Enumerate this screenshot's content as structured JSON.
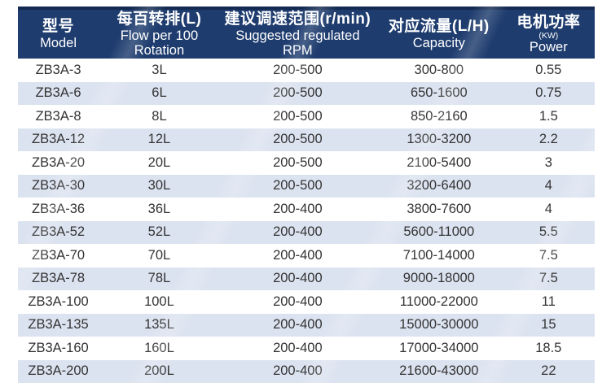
{
  "colors": {
    "header_bg": "#1e3c6e",
    "header_top": "#142a52",
    "header_text": "#ffffff",
    "stripe_bg": "#dce3f0",
    "row_bg": "#ffffff",
    "body_text": "#333333"
  },
  "table": {
    "header": [
      {
        "lines": [
          "型号",
          "Model"
        ]
      },
      {
        "lines": [
          "每百转排(L)",
          "Flow per 100",
          "Rotation"
        ]
      },
      {
        "lines": [
          "建议调速范围(r/min)",
          "Suggested regulated",
          "RPM"
        ]
      },
      {
        "lines": [
          "对应流量(L/H)",
          "Capacity"
        ]
      },
      {
        "lines": [
          "电机功率",
          "(KW)",
          "Power"
        ],
        "small_line": 1
      }
    ],
    "rows": [
      {
        "model": "ZB3A-3",
        "flow": "3L",
        "rpm": "200-500",
        "capacity": "300-800",
        "power": "0.55"
      },
      {
        "model": "ZB3A-6",
        "flow": "6L",
        "rpm": "200-500",
        "capacity": "650-1600",
        "power": "0.75"
      },
      {
        "model": "ZB3A-8",
        "flow": "8L",
        "rpm": "200-500",
        "capacity": "850-2160",
        "power": "1.5"
      },
      {
        "model": "ZB3A-12",
        "flow": "12L",
        "rpm": "200-500",
        "capacity": "1300-3200",
        "power": "2.2"
      },
      {
        "model": "ZB3A-20",
        "flow": "20L",
        "rpm": "200-500",
        "capacity": "2100-5400",
        "power": "3"
      },
      {
        "model": "ZB3A-30",
        "flow": "30L",
        "rpm": "200-500",
        "capacity": "3200-6400",
        "power": "4"
      },
      {
        "model": "ZB3A-36",
        "flow": "36L",
        "rpm": "200-400",
        "capacity": "3800-7600",
        "power": "4"
      },
      {
        "model": "ZB3A-52",
        "flow": "52L",
        "rpm": "200-400",
        "capacity": "5600-11000",
        "power": "5.5"
      },
      {
        "model": "ZB3A-70",
        "flow": "70L",
        "rpm": "200-400",
        "capacity": "7100-14000",
        "power": "7.5"
      },
      {
        "model": "ZB3A-78",
        "flow": "78L",
        "rpm": "200-400",
        "capacity": "9000-18000",
        "power": "7.5"
      },
      {
        "model": "ZB3A-100",
        "flow": "100L",
        "rpm": "200-400",
        "capacity": "11000-22000",
        "power": "11"
      },
      {
        "model": "ZB3A-135",
        "flow": "135L",
        "rpm": "200-400",
        "capacity": "15000-30000",
        "power": "15"
      },
      {
        "model": "ZB3A-160",
        "flow": "160L",
        "rpm": "200-400",
        "capacity": "17000-34000",
        "power": "18.5"
      },
      {
        "model": "ZB3A-200",
        "flow": "200L",
        "rpm": "200-400",
        "capacity": "21600-43000",
        "power": "22"
      }
    ]
  }
}
